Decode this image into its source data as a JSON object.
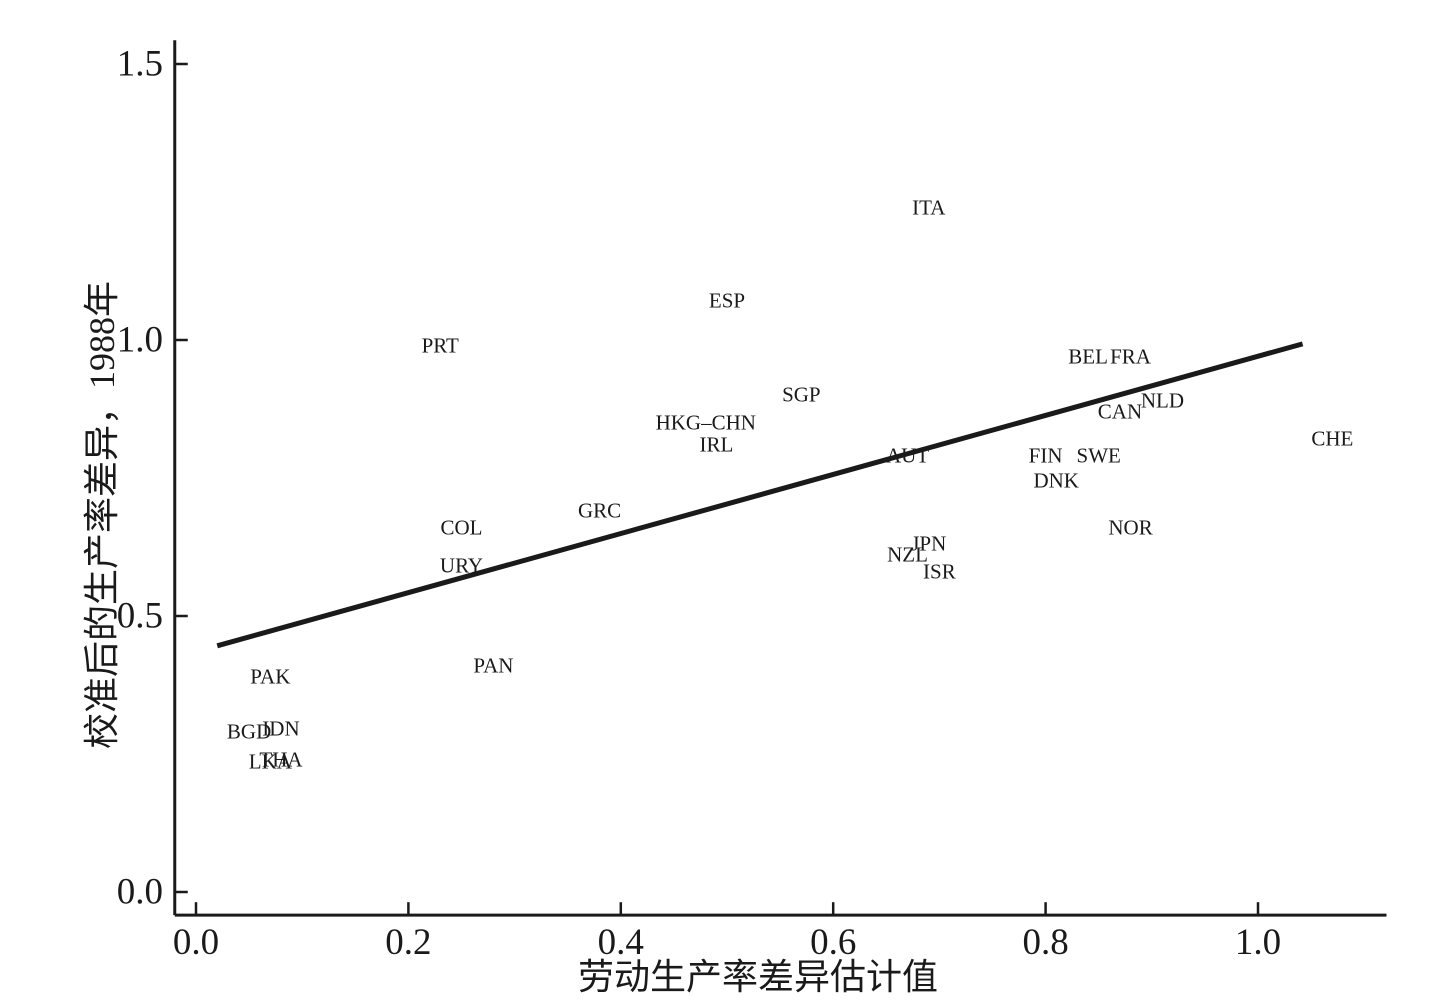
{
  "chart_data": {
    "type": "scatter",
    "title": "",
    "xlabel": "劳动生产率差异估计值",
    "ylabel": "校准后的生产率差异，1988年",
    "xlim": [
      -0.02,
      1.121
    ],
    "ylim": [
      -0.042,
      1.543
    ],
    "x_ticks": [
      0.0,
      0.2,
      0.4,
      0.6,
      0.8,
      1.0
    ],
    "x_tick_labels": [
      "0.0",
      "0.2",
      "0.4",
      "0.6",
      "0.8",
      "1.0"
    ],
    "y_ticks": [
      0.0,
      0.5,
      1.0,
      1.5
    ],
    "y_tick_labels": [
      "0.0",
      "0.5",
      "1.0",
      "1.5"
    ],
    "grid": false,
    "legend": "none",
    "marker_style": "country-code-text-label",
    "line_color": "#1a1a1a",
    "points": [
      {
        "label": "ITA",
        "x": 0.69,
        "y": 1.24
      },
      {
        "label": "ESP",
        "x": 0.5,
        "y": 1.07
      },
      {
        "label": "PRT",
        "x": 0.23,
        "y": 0.99
      },
      {
        "label": "BEL",
        "x": 0.84,
        "y": 0.97
      },
      {
        "label": "FRA",
        "x": 0.88,
        "y": 0.97
      },
      {
        "label": "SGP",
        "x": 0.57,
        "y": 0.9
      },
      {
        "label": "NLD",
        "x": 0.91,
        "y": 0.89
      },
      {
        "label": "CAN",
        "x": 0.87,
        "y": 0.87
      },
      {
        "label": "HKG–CHN",
        "x": 0.48,
        "y": 0.85
      },
      {
        "label": "CHE",
        "x": 1.07,
        "y": 0.82
      },
      {
        "label": "IRL",
        "x": 0.49,
        "y": 0.81
      },
      {
        "label": "AUT",
        "x": 0.67,
        "y": 0.79
      },
      {
        "label": "FIN",
        "x": 0.8,
        "y": 0.79
      },
      {
        "label": "SWE",
        "x": 0.85,
        "y": 0.79
      },
      {
        "label": "DNK",
        "x": 0.81,
        "y": 0.745
      },
      {
        "label": "GRC",
        "x": 0.38,
        "y": 0.69
      },
      {
        "label": "COL",
        "x": 0.25,
        "y": 0.66
      },
      {
        "label": "NOR",
        "x": 0.88,
        "y": 0.66
      },
      {
        "label": "JPN",
        "x": 0.69,
        "y": 0.63
      },
      {
        "label": "NZL",
        "x": 0.67,
        "y": 0.61
      },
      {
        "label": "URY",
        "x": 0.25,
        "y": 0.59
      },
      {
        "label": "ISR",
        "x": 0.7,
        "y": 0.58
      },
      {
        "label": "PAN",
        "x": 0.28,
        "y": 0.41
      },
      {
        "label": "PAK",
        "x": 0.07,
        "y": 0.39
      },
      {
        "label": "IDN",
        "x": 0.08,
        "y": 0.295
      },
      {
        "label": "BGD",
        "x": 0.05,
        "y": 0.29
      },
      {
        "label": "THA",
        "x": 0.08,
        "y": 0.24
      },
      {
        "label": "LKA",
        "x": 0.07,
        "y": 0.235
      }
    ],
    "trend_line": {
      "x1": 0.02,
      "y1": 0.446,
      "x2": 1.042,
      "y2": 0.993
    }
  }
}
